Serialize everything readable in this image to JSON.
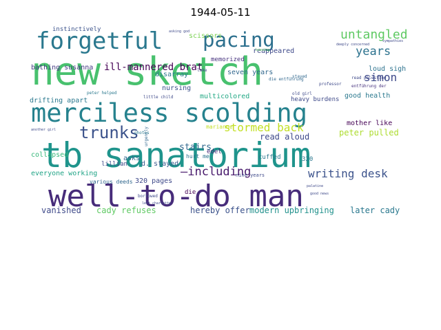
{
  "chart_data": {
    "type": "wordcloud",
    "title": "1944-05-11",
    "words": [
      {
        "text": "new sketch",
        "color": "#48c16e"
      },
      {
        "text": "tb sanatorium",
        "color": "#1f948c"
      },
      {
        "text": "well-to-do man",
        "color": "#472c7a"
      },
      {
        "text": "merciless scolding",
        "color": "#26828e"
      },
      {
        "text": "forgetful",
        "color": "#2a788e"
      },
      {
        "text": "pacing",
        "color": "#2d708e"
      },
      {
        "text": "trunks",
        "color": "#3b528b"
      },
      {
        "text": "untangled",
        "color": "#5ec962"
      },
      {
        "text": "years",
        "color": "#2c728e"
      },
      {
        "text": "simon",
        "color": "#3e4989"
      },
      {
        "text": "stormed back",
        "color": "#c2df23"
      },
      {
        "text": "—including",
        "color": "#481a6c"
      },
      {
        "text": "writing desk",
        "color": "#3b528b"
      },
      {
        "text": "ill-mannered brat",
        "color": "#440154"
      },
      {
        "text": "stairs",
        "color": "#31688e"
      },
      {
        "text": "read aloud",
        "color": "#3e4989"
      },
      {
        "text": "peter pulled",
        "color": "#addc30"
      },
      {
        "text": "later cady",
        "color": "#2a788e"
      },
      {
        "text": "modern upbringing",
        "color": "#21918c"
      },
      {
        "text": "hereby offer",
        "color": "#3b528b"
      },
      {
        "text": "cady refuses",
        "color": "#5ec962"
      },
      {
        "text": "vanished",
        "color": "#3e4989"
      },
      {
        "text": "scissors",
        "color": "#7ad151"
      },
      {
        "text": "instinctively",
        "color": "#3b528b"
      },
      {
        "text": "bathing susanna",
        "color": "#443983"
      },
      {
        "text": "drifting apart",
        "color": "#2a788e"
      },
      {
        "text": "collapsed",
        "color": "#35b779"
      },
      {
        "text": "everyone working",
        "color": "#20a486"
      },
      {
        "text": "multicolored",
        "color": "#22a884"
      },
      {
        "text": "nursing",
        "color": "#3b528b"
      },
      {
        "text": "disarray",
        "color": "#2a788e"
      },
      {
        "text": "seven years",
        "color": "#31688e"
      },
      {
        "text": "heavy burdens",
        "color": "#3e4989"
      },
      {
        "text": "good health",
        "color": "#2a788e"
      },
      {
        "text": "mother like",
        "color": "#440154"
      },
      {
        "text": "loud sigh",
        "color": "#2c728e"
      },
      {
        "text": "reappeared",
        "color": "#3e4989"
      },
      {
        "text": "memorized",
        "color": "#46327e"
      },
      {
        "text": "edel",
        "color": "#472d7b"
      },
      {
        "text": "asks",
        "color": "#31688e"
      },
      {
        "text": "d. stayed",
        "color": "#38598c"
      },
      {
        "text": "320 pages",
        "color": "#3e4989"
      },
      {
        "text": "cuffed",
        "color": "#2a788e"
      },
      {
        "text": "320",
        "color": "#2a788e"
      },
      {
        "text": "die",
        "color": "#440154"
      },
      {
        "text": "lillian",
        "color": "#3e4989"
      },
      {
        "text": "various deeds",
        "color": "#31688e"
      },
      {
        "text": "marianne",
        "color": "#c2df23"
      },
      {
        "text": "hurt me",
        "color": "#2c728e"
      },
      {
        "text": "nine years",
        "color": "#3e4989"
      },
      {
        "text": "peter helped",
        "color": "#2a788e"
      },
      {
        "text": "little child",
        "color": "#3e4989"
      },
      {
        "text": "read palestine",
        "color": "#3e4989"
      },
      {
        "text": "entführung der",
        "color": "#46327e"
      },
      {
        "text": "die entführung",
        "color": "#31688e"
      },
      {
        "text": "urgently",
        "color": "#31688e"
      },
      {
        "text": "professor",
        "color": "#3e4989"
      },
      {
        "text": "old girl",
        "color": "#3e4989"
      },
      {
        "text": "stayed",
        "color": "#31688e"
      },
      {
        "text": "lake",
        "color": "#3e4989"
      },
      {
        "text": "another girl",
        "color": "#3e4989"
      },
      {
        "text": "photos",
        "color": "#2a788e"
      },
      {
        "text": "leaving",
        "color": "#5ec962"
      },
      {
        "text": "asking god",
        "color": "#3e4989"
      },
      {
        "text": "deeply concerned",
        "color": "#3e4989"
      },
      {
        "text": "sympathies",
        "color": "#3e4989"
      },
      {
        "text": "borrowed",
        "color": "#3e4989"
      },
      {
        "text": "left charlotte",
        "color": "#3e4989"
      },
      {
        "text": "palatine",
        "color": "#3e4989"
      },
      {
        "text": "good news",
        "color": "#3e4989"
      }
    ]
  }
}
